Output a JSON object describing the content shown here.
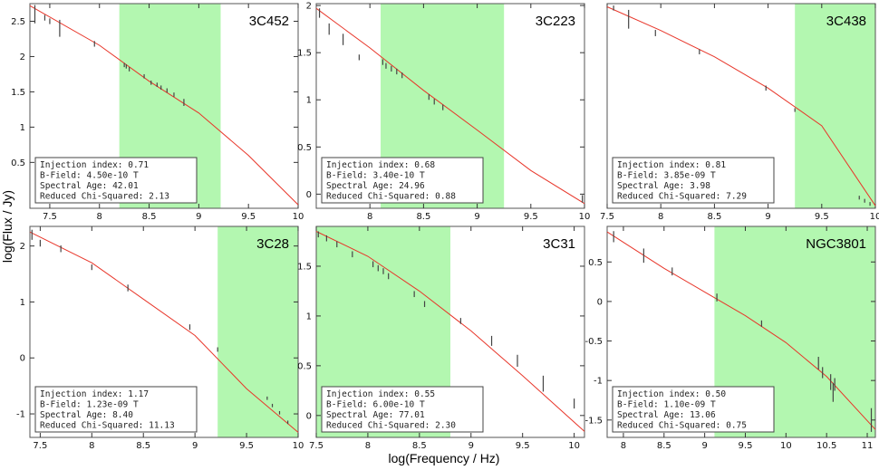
{
  "figure": {
    "ylabel": "log(Flux / Jy)",
    "xlabel": "log(Frequency / Hz)"
  },
  "colors": {
    "band": "#b3f7b0",
    "model": "#e8362a",
    "data": "#444444",
    "frame": "#555555"
  },
  "chart_data": [
    {
      "type": "line",
      "name": "3C452",
      "xlim": [
        7.3,
        10.0
      ],
      "ylim": [
        -0.15,
        2.75
      ],
      "xticks": [
        7.5,
        8,
        8.5,
        9,
        9.5,
        10
      ],
      "yticks": [
        0.5,
        1,
        1.5,
        2,
        2.5
      ],
      "xtick_labels": true,
      "ytick_labels": true,
      "band": [
        8.2,
        9.22
      ],
      "model": [
        [
          7.3,
          2.72
        ],
        [
          8.0,
          2.16
        ],
        [
          8.5,
          1.65
        ],
        [
          9.0,
          1.2
        ],
        [
          9.5,
          0.6
        ],
        [
          10.0,
          -0.1
        ]
      ],
      "points": [
        [
          7.35,
          2.6,
          0.13
        ],
        [
          7.45,
          2.55,
          0.04
        ],
        [
          7.5,
          2.5,
          0.04
        ],
        [
          7.6,
          2.4,
          0.12
        ],
        [
          7.95,
          2.18,
          0.04
        ],
        [
          8.25,
          1.88,
          0.03
        ],
        [
          8.27,
          1.86,
          0.03
        ],
        [
          8.3,
          1.82,
          0.03
        ],
        [
          8.45,
          1.72,
          0.03
        ],
        [
          8.52,
          1.63,
          0.03
        ],
        [
          8.58,
          1.6,
          0.03
        ],
        [
          8.62,
          1.56,
          0.03
        ],
        [
          8.68,
          1.52,
          0.03
        ],
        [
          8.75,
          1.46,
          0.03
        ],
        [
          8.85,
          1.35,
          0.05
        ]
      ],
      "info": [
        "Injection index: 0.71",
        "B-Field: 4.50e-10 T",
        "Spectral Age: 42.01",
        "Reduced Chi-Squared: 2.13"
      ]
    },
    {
      "type": "line",
      "name": "3C223",
      "xlim": [
        7.5,
        10.0
      ],
      "ylim": [
        -0.15,
        2.02
      ],
      "xticks": [
        8,
        8.5,
        9,
        9.5,
        10
      ],
      "yticks": [
        0,
        0.5,
        1,
        1.5,
        2
      ],
      "xtick_labels": true,
      "ytick_labels": true,
      "band": [
        8.1,
        9.25
      ],
      "model": [
        [
          7.5,
          1.97
        ],
        [
          8.0,
          1.55
        ],
        [
          8.5,
          1.1
        ],
        [
          9.0,
          0.68
        ],
        [
          9.5,
          0.25
        ],
        [
          10.0,
          -0.1
        ]
      ],
      "points": [
        [
          7.53,
          1.92,
          0.05
        ],
        [
          7.62,
          1.75,
          0.06
        ],
        [
          7.75,
          1.64,
          0.06
        ],
        [
          7.9,
          1.45,
          0.03
        ],
        [
          8.12,
          1.4,
          0.03
        ],
        [
          8.15,
          1.36,
          0.03
        ],
        [
          8.2,
          1.33,
          0.03
        ],
        [
          8.25,
          1.3,
          0.03
        ],
        [
          8.3,
          1.26,
          0.03
        ],
        [
          8.55,
          1.03,
          0.03
        ],
        [
          8.6,
          0.98,
          0.03
        ],
        [
          8.68,
          0.92,
          0.03
        ],
        [
          9.98,
          -0.05,
          0.04
        ]
      ],
      "info": [
        "Injection index: 0.68",
        "B-Field: 3.40e-10 T",
        "Spectral Age: 24.96",
        "Reduced Chi-Squared: 0.88"
      ]
    },
    {
      "type": "line",
      "name": "3C438",
      "xlim": [
        7.5,
        10.0
      ],
      "ylim": [
        -0.42,
        2.85
      ],
      "xticks": [
        7.5,
        8,
        8.5,
        9,
        9.5,
        10
      ],
      "yticks": [],
      "xtick_labels": true,
      "ytick_labels": false,
      "band": [
        9.25,
        10.0
      ],
      "model": [
        [
          7.5,
          2.8
        ],
        [
          8.0,
          2.42
        ],
        [
          8.5,
          2.0
        ],
        [
          9.0,
          1.5
        ],
        [
          9.5,
          0.9
        ],
        [
          10.0,
          -0.38
        ]
      ],
      "points": [
        [
          7.56,
          2.78,
          0.04
        ],
        [
          7.7,
          2.6,
          0.15
        ],
        [
          7.95,
          2.38,
          0.05
        ],
        [
          8.36,
          2.08,
          0.04
        ],
        [
          8.98,
          1.5,
          0.04
        ],
        [
          9.25,
          1.15,
          0.03
        ],
        [
          9.85,
          -0.25,
          0.03
        ],
        [
          9.9,
          -0.3,
          0.03
        ],
        [
          9.95,
          -0.35,
          0.03
        ]
      ],
      "info": [
        "Injection index: 0.81",
        "B-Field: 3.85e-09 T",
        "Spectral Age: 3.98",
        "Reduced Chi-Squared: 7.29"
      ]
    },
    {
      "type": "line",
      "name": "3C28",
      "xlim": [
        7.4,
        10.0
      ],
      "ylim": [
        -1.42,
        2.35
      ],
      "xticks": [
        7.5,
        8,
        8.5,
        9,
        9.5,
        10
      ],
      "yticks": [
        -1,
        0,
        1,
        2
      ],
      "xtick_labels": true,
      "ytick_labels": true,
      "band": [
        9.22,
        10.0
      ],
      "model": [
        [
          7.4,
          2.25
        ],
        [
          8.0,
          1.7
        ],
        [
          8.5,
          1.05
        ],
        [
          9.0,
          0.4
        ],
        [
          9.5,
          -0.55
        ],
        [
          10.0,
          -1.33
        ]
      ],
      "points": [
        [
          7.42,
          2.2,
          0.09
        ],
        [
          7.5,
          2.05,
          0.06
        ],
        [
          7.7,
          1.95,
          0.06
        ],
        [
          8.0,
          1.62,
          0.05
        ],
        [
          8.35,
          1.25,
          0.06
        ],
        [
          8.95,
          0.55,
          0.05
        ],
        [
          9.22,
          0.15,
          0.04
        ],
        [
          9.7,
          -0.72,
          0.03
        ],
        [
          9.75,
          -0.85,
          0.03
        ],
        [
          9.82,
          -0.98,
          0.03
        ],
        [
          9.9,
          -1.15,
          0.03
        ]
      ],
      "info": [
        "Injection index: 1.17",
        "B-Field: 1.23e-09 T",
        "Spectral Age: 8.40",
        "Reduced Chi-Squared: 11.13"
      ]
    },
    {
      "type": "line",
      "name": "3C31",
      "xlim": [
        7.5,
        10.1
      ],
      "ylim": [
        -0.22,
        1.9
      ],
      "xticks": [
        7.5,
        8,
        8.5,
        9,
        9.5,
        10
      ],
      "yticks": [
        0,
        0.5,
        1,
        1.5
      ],
      "xtick_labels": true,
      "ytick_labels": true,
      "band": [
        7.5,
        8.8
      ],
      "model": [
        [
          7.5,
          1.85
        ],
        [
          8.0,
          1.6
        ],
        [
          8.5,
          1.25
        ],
        [
          9.0,
          0.85
        ],
        [
          9.5,
          0.4
        ],
        [
          10.1,
          -0.16
        ]
      ],
      "points": [
        [
          7.52,
          1.82,
          0.03
        ],
        [
          7.6,
          1.78,
          0.03
        ],
        [
          7.7,
          1.72,
          0.03
        ],
        [
          7.85,
          1.62,
          0.03
        ],
        [
          8.05,
          1.52,
          0.03
        ],
        [
          8.1,
          1.48,
          0.03
        ],
        [
          8.15,
          1.45,
          0.03
        ],
        [
          8.2,
          1.4,
          0.03
        ],
        [
          8.45,
          1.22,
          0.03
        ],
        [
          8.55,
          1.12,
          0.03
        ],
        [
          8.9,
          0.95,
          0.03
        ],
        [
          9.2,
          0.75,
          0.05
        ],
        [
          9.45,
          0.55,
          0.06
        ],
        [
          9.7,
          0.32,
          0.08
        ],
        [
          10.0,
          0.12,
          0.05
        ]
      ],
      "info": [
        "Injection index: 0.55",
        "B-Field: 6.00e-10 T",
        "Spectral Age: 77.01",
        "Reduced Chi-Squared: 2.30"
      ]
    },
    {
      "type": "line",
      "name": "NGC3801",
      "xlim": [
        7.8,
        11.1
      ],
      "ylim": [
        -1.72,
        0.95
      ],
      "xticks": [
        8,
        8.5,
        9,
        9.5,
        10,
        10.5,
        11
      ],
      "yticks": [
        -1.5,
        -1,
        -0.5,
        0,
        0.5
      ],
      "xtick_labels": true,
      "ytick_labels": true,
      "band": [
        9.12,
        11.1
      ],
      "model": [
        [
          7.8,
          0.88
        ],
        [
          8.5,
          0.42
        ],
        [
          9.0,
          0.12
        ],
        [
          9.5,
          -0.18
        ],
        [
          10.0,
          -0.52
        ],
        [
          10.5,
          -0.95
        ],
        [
          11.1,
          -1.62
        ]
      ],
      "points": [
        [
          7.88,
          0.82,
          0.07
        ],
        [
          8.25,
          0.58,
          0.09
        ],
        [
          8.6,
          0.38,
          0.05
        ],
        [
          9.15,
          0.05,
          0.05
        ],
        [
          9.7,
          -0.28,
          0.04
        ],
        [
          10.4,
          -0.78,
          0.08
        ],
        [
          10.45,
          -0.9,
          0.07
        ],
        [
          10.55,
          -1.02,
          0.1
        ],
        [
          10.58,
          -1.15,
          0.12
        ],
        [
          10.6,
          -1.05,
          0.08
        ],
        [
          11.05,
          -1.5,
          0.15
        ]
      ],
      "info": [
        "Injection index: 0.50",
        "B-Field: 1.10e-09 T",
        "Spectral Age: 13.06",
        "Reduced Chi-Squared: 0.75"
      ]
    }
  ]
}
